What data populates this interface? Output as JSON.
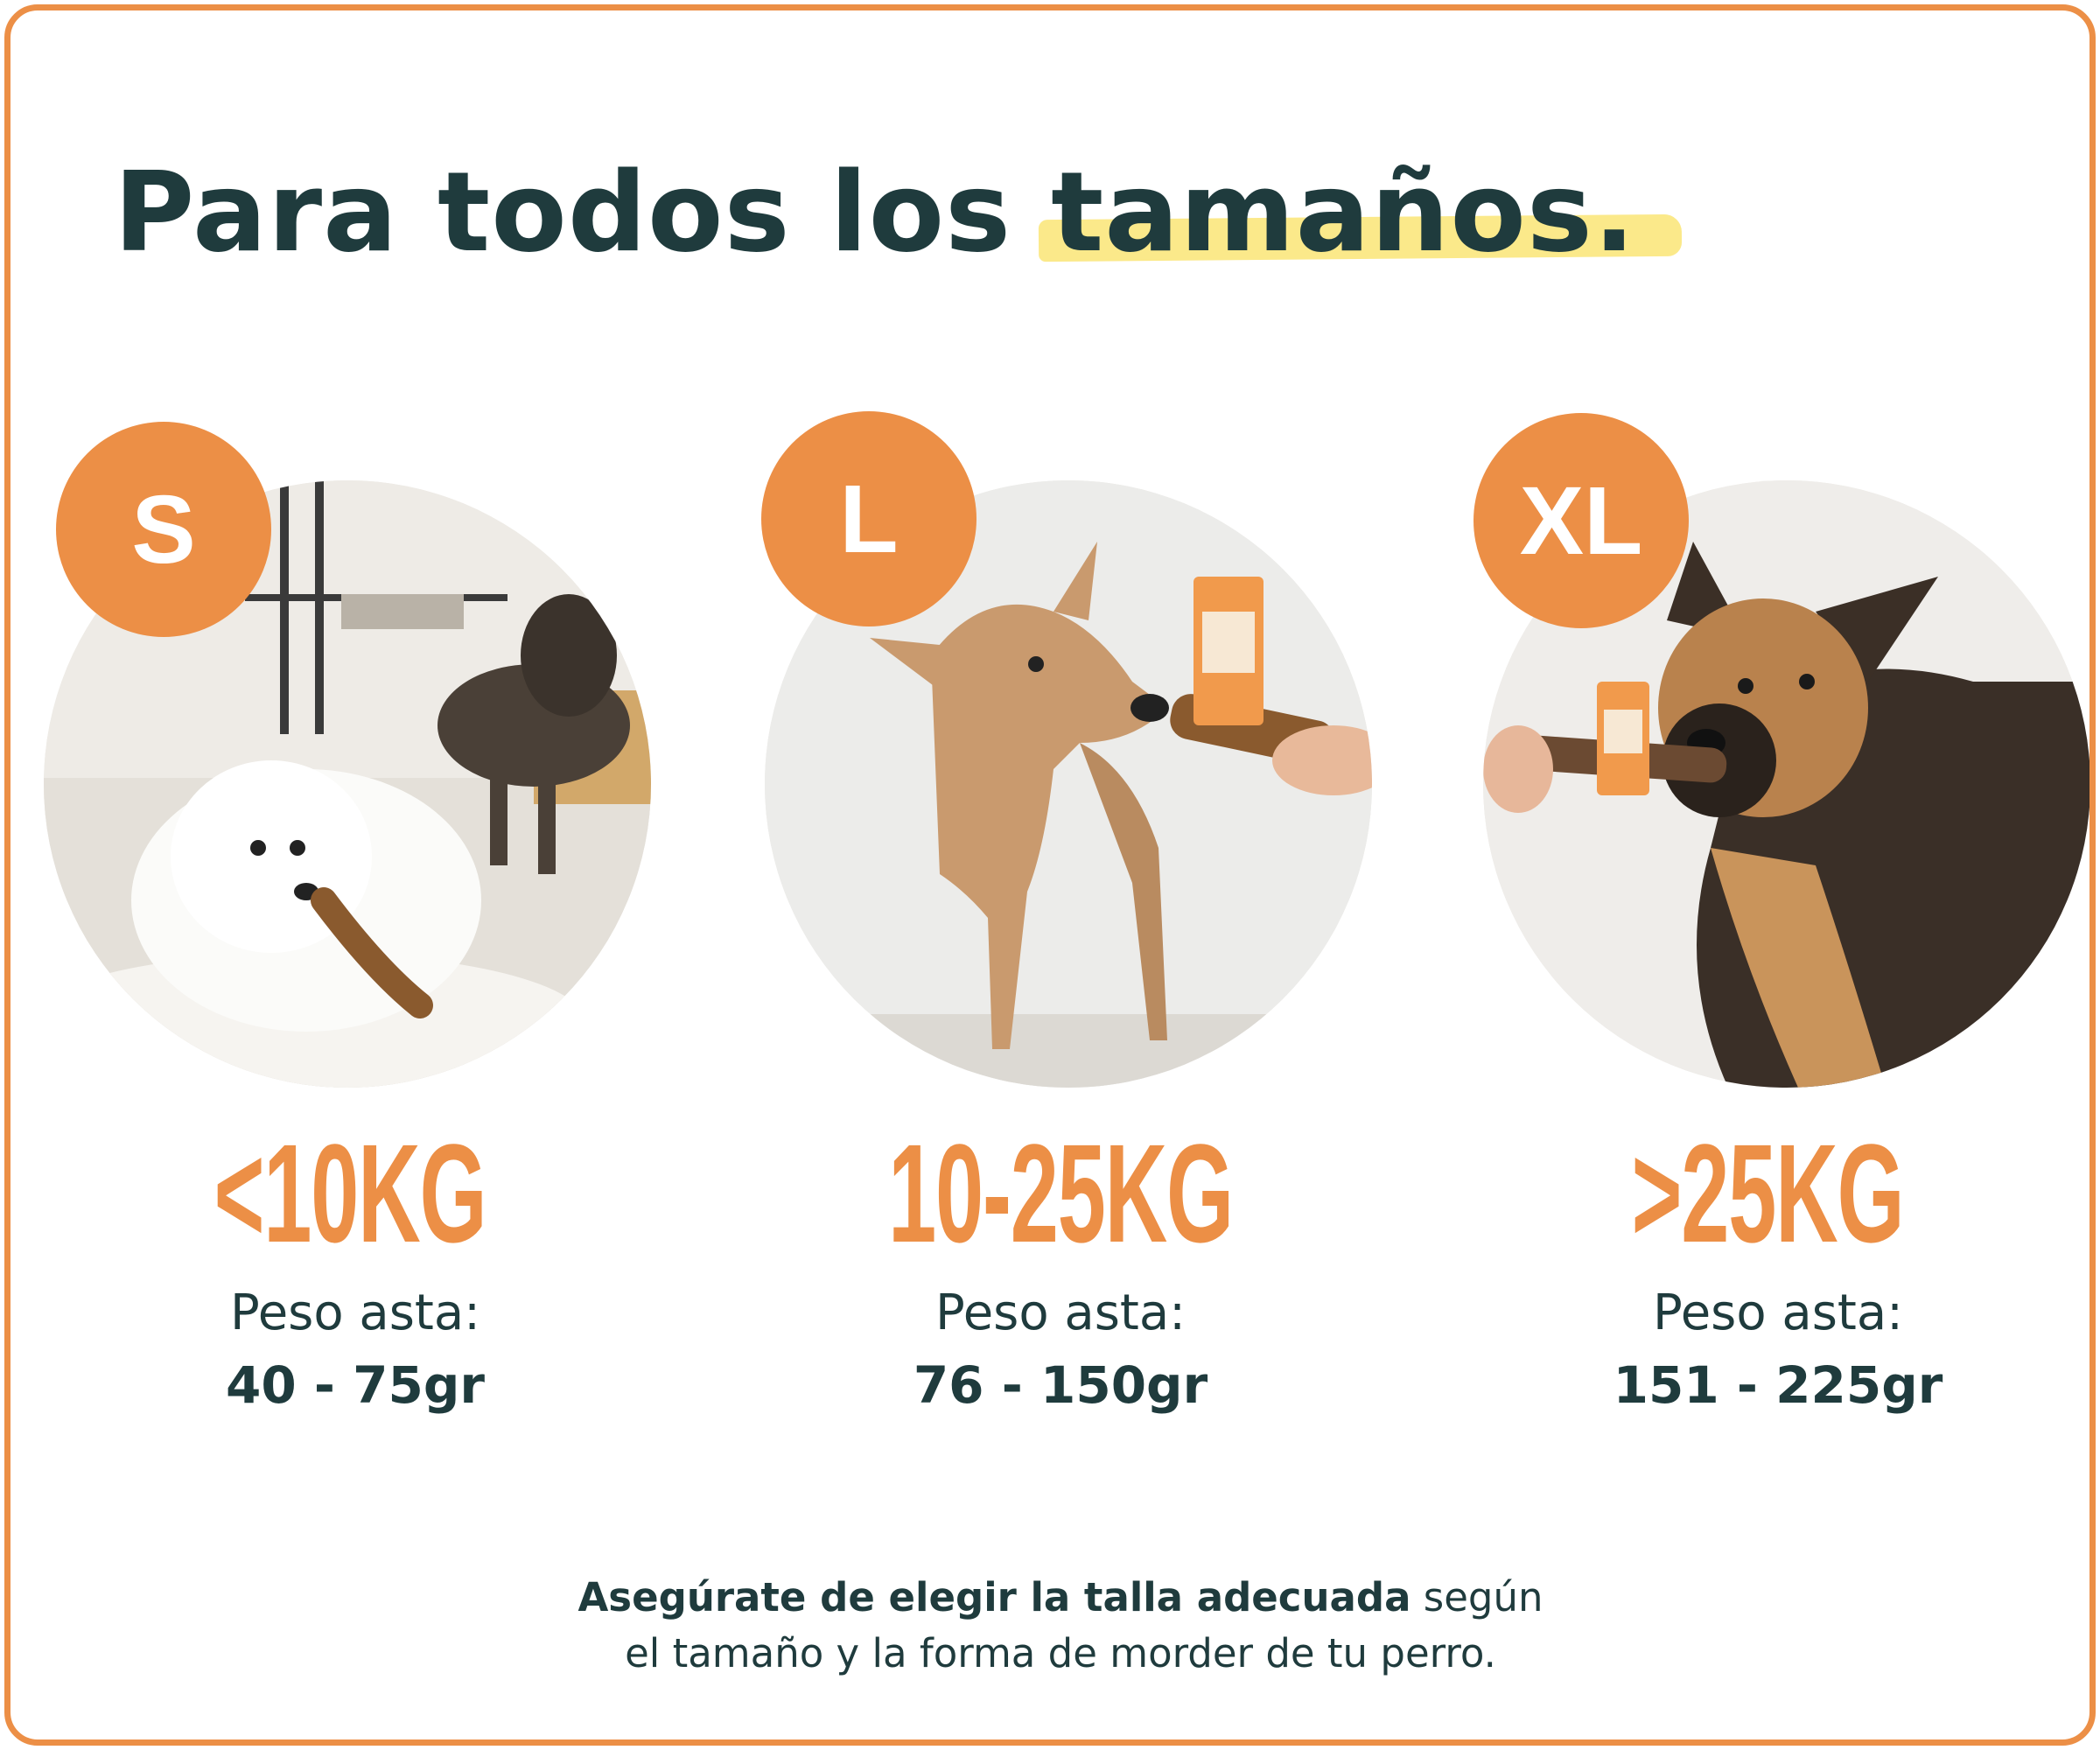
{
  "title": {
    "prefix": "Para todos los",
    "highlight": "tamaños."
  },
  "colors": {
    "accent": "#ec8f46",
    "text": "#1f3b3d",
    "highlight": "#fbe98a"
  },
  "sizes": [
    {
      "badge": "S",
      "weight": "<10KG",
      "peso_label": "Peso asta:",
      "peso_value": "40 - 75gr",
      "photo": "small-dogs-with-antler-photo"
    },
    {
      "badge": "L",
      "weight": "10-25KG",
      "peso_label": "Peso asta:",
      "peso_value": "76 - 150gr",
      "photo": "medium-dog-with-antler-photo"
    },
    {
      "badge": "XL",
      "weight": ">25KG",
      "peso_label": "Peso asta:",
      "peso_value": "151 - 225gr",
      "photo": "large-dog-with-antler-photo"
    }
  ],
  "note": {
    "bold": "Asegúrate de elegir la talla adecuada",
    "line1_rest": " según",
    "line2": "el tamaño y la forma de morder de tu perro."
  }
}
